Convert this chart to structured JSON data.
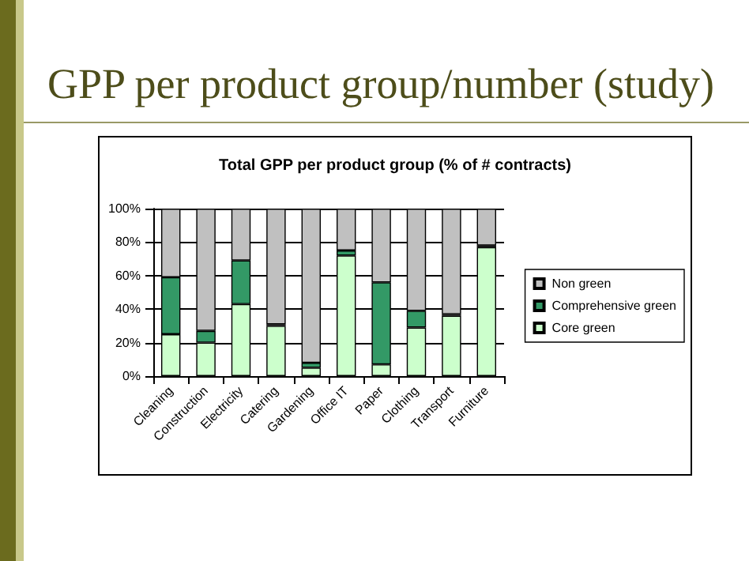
{
  "chart_data": {
    "type": "bar",
    "title": "GPP per product group/number (study)",
    "subtitle": "Total GPP per product group (% of # contracts)",
    "categories": [
      "Cleaning",
      "Construction",
      "Electricity",
      "Catering",
      "Gardening",
      "Office IT",
      "Paper",
      "Clothing",
      "Transport",
      "Furniture"
    ],
    "stacked": true,
    "series": [
      {
        "name": "Core green",
        "color": "#ccffcc",
        "values": [
          25,
          20,
          43,
          30,
          5,
          72,
          7,
          29,
          36,
          77
        ]
      },
      {
        "name": "Comprehensive green",
        "color": "#339966",
        "values": [
          34,
          7,
          26,
          1,
          3,
          3,
          49,
          10,
          1,
          1
        ]
      },
      {
        "name": "Non green",
        "color": "#c0c0c0",
        "values": [
          41,
          73,
          31,
          69,
          92,
          25,
          44,
          61,
          63,
          22
        ]
      }
    ],
    "ylim": [
      0,
      100
    ],
    "yticks": [
      {
        "value": 0,
        "label": "0%"
      },
      {
        "value": 20,
        "label": "20%"
      },
      {
        "value": 40,
        "label": "40%"
      },
      {
        "value": 60,
        "label": "60%"
      },
      {
        "value": 80,
        "label": "80%"
      },
      {
        "value": 100,
        "label": "100%"
      }
    ],
    "grid": "y",
    "legend": "right"
  }
}
